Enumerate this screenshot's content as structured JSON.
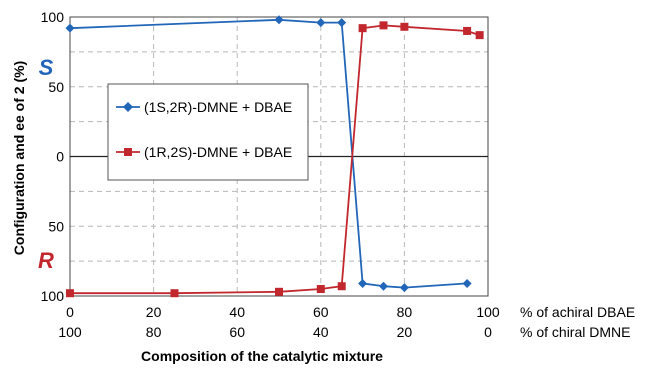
{
  "chart_data": {
    "type": "line",
    "xlabel": "Composition of the catalytic mixture",
    "ylabel": "Configuration and ee of 2 (%)",
    "xlim": [
      0,
      100
    ],
    "x_ticks_achiral": [
      "0",
      "20",
      "40",
      "60",
      "80",
      "100"
    ],
    "x_ticks_chiral": [
      "100",
      "80",
      "60",
      "40",
      "20",
      "0"
    ],
    "x_row_label_achiral": "% of achiral DBAE",
    "x_row_label_chiral": "% of chiral DMNE",
    "y_ticks": [
      "100",
      "50",
      "0",
      "50",
      "100"
    ],
    "y_region_labels": {
      "top": "S",
      "bottom": "R"
    },
    "ylim": [
      -100,
      100
    ],
    "grid": true,
    "legend_position": "center-left",
    "series": [
      {
        "name": "(1S,2R)-DMNE + DBAE",
        "color": "#2166b8",
        "marker": "diamond",
        "x": [
          0,
          50,
          60,
          65,
          70,
          75,
          80,
          95
        ],
        "y": [
          92,
          98,
          96,
          96,
          -91,
          -93,
          -94,
          -91
        ]
      },
      {
        "name": "(1R,2S)-DMNE + DBAE",
        "color": "#c1272d",
        "marker": "square",
        "x": [
          0,
          25,
          50,
          60,
          65,
          70,
          75,
          80,
          95,
          98
        ],
        "y": [
          -98,
          -98,
          -97,
          -95,
          -93,
          92,
          94,
          93,
          90,
          87
        ]
      }
    ]
  }
}
